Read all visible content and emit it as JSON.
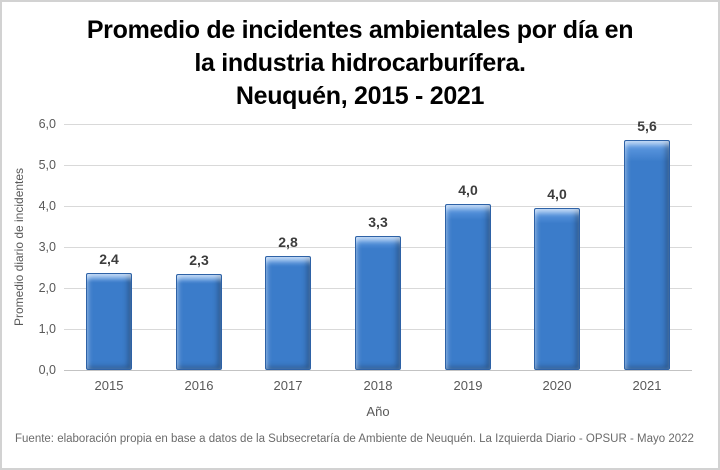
{
  "title": {
    "lines": [
      "Promedio de incidentes ambientales por día en",
      "la industria hidrocarburífera.",
      "Neuquén, 2015 - 2021"
    ]
  },
  "chart_data": {
    "type": "bar",
    "title": "Promedio de incidentes ambientales por día en la industria hidrocarburífera. Neuquén, 2015 - 2021",
    "categories": [
      "2015",
      "2016",
      "2017",
      "2018",
      "2019",
      "2020",
      "2021"
    ],
    "values": [
      2.4,
      2.3,
      2.8,
      3.3,
      4.0,
      4.0,
      5.6
    ],
    "bar_pixel_values": [
      2.37,
      2.33,
      2.77,
      3.27,
      4.04,
      3.96,
      5.6
    ],
    "data_labels": [
      "2,4",
      "2,3",
      "2,8",
      "3,3",
      "4,0",
      "4,0",
      "5,6"
    ],
    "xlabel": "Año",
    "ylabel": "Promedio diario de incidentes",
    "ylim": [
      0,
      6
    ],
    "yticks": [
      0,
      1,
      2,
      3,
      4,
      5,
      6
    ],
    "ytick_labels": [
      "0,0",
      "1,0",
      "2,0",
      "3,0",
      "4,0",
      "5,0",
      "6,0"
    ],
    "grid": true,
    "legend": "none",
    "colors": {
      "bar_fill": "#3b7cca",
      "bar_fill_light": "#66a0e6",
      "bar_border": "#2e62a6",
      "gridline": "#d9d9d9",
      "axis_line": "#c3c3c3",
      "tick_text": "#595959",
      "data_label_text": "#3d3d3d",
      "title_text": "#000000"
    }
  },
  "footer": {
    "source": "Fuente: elaboración propia en base a datos de la Subsecretaría de Ambiente de Neuquén. La Izquierda Diario - OPSUR - Mayo 2022"
  }
}
